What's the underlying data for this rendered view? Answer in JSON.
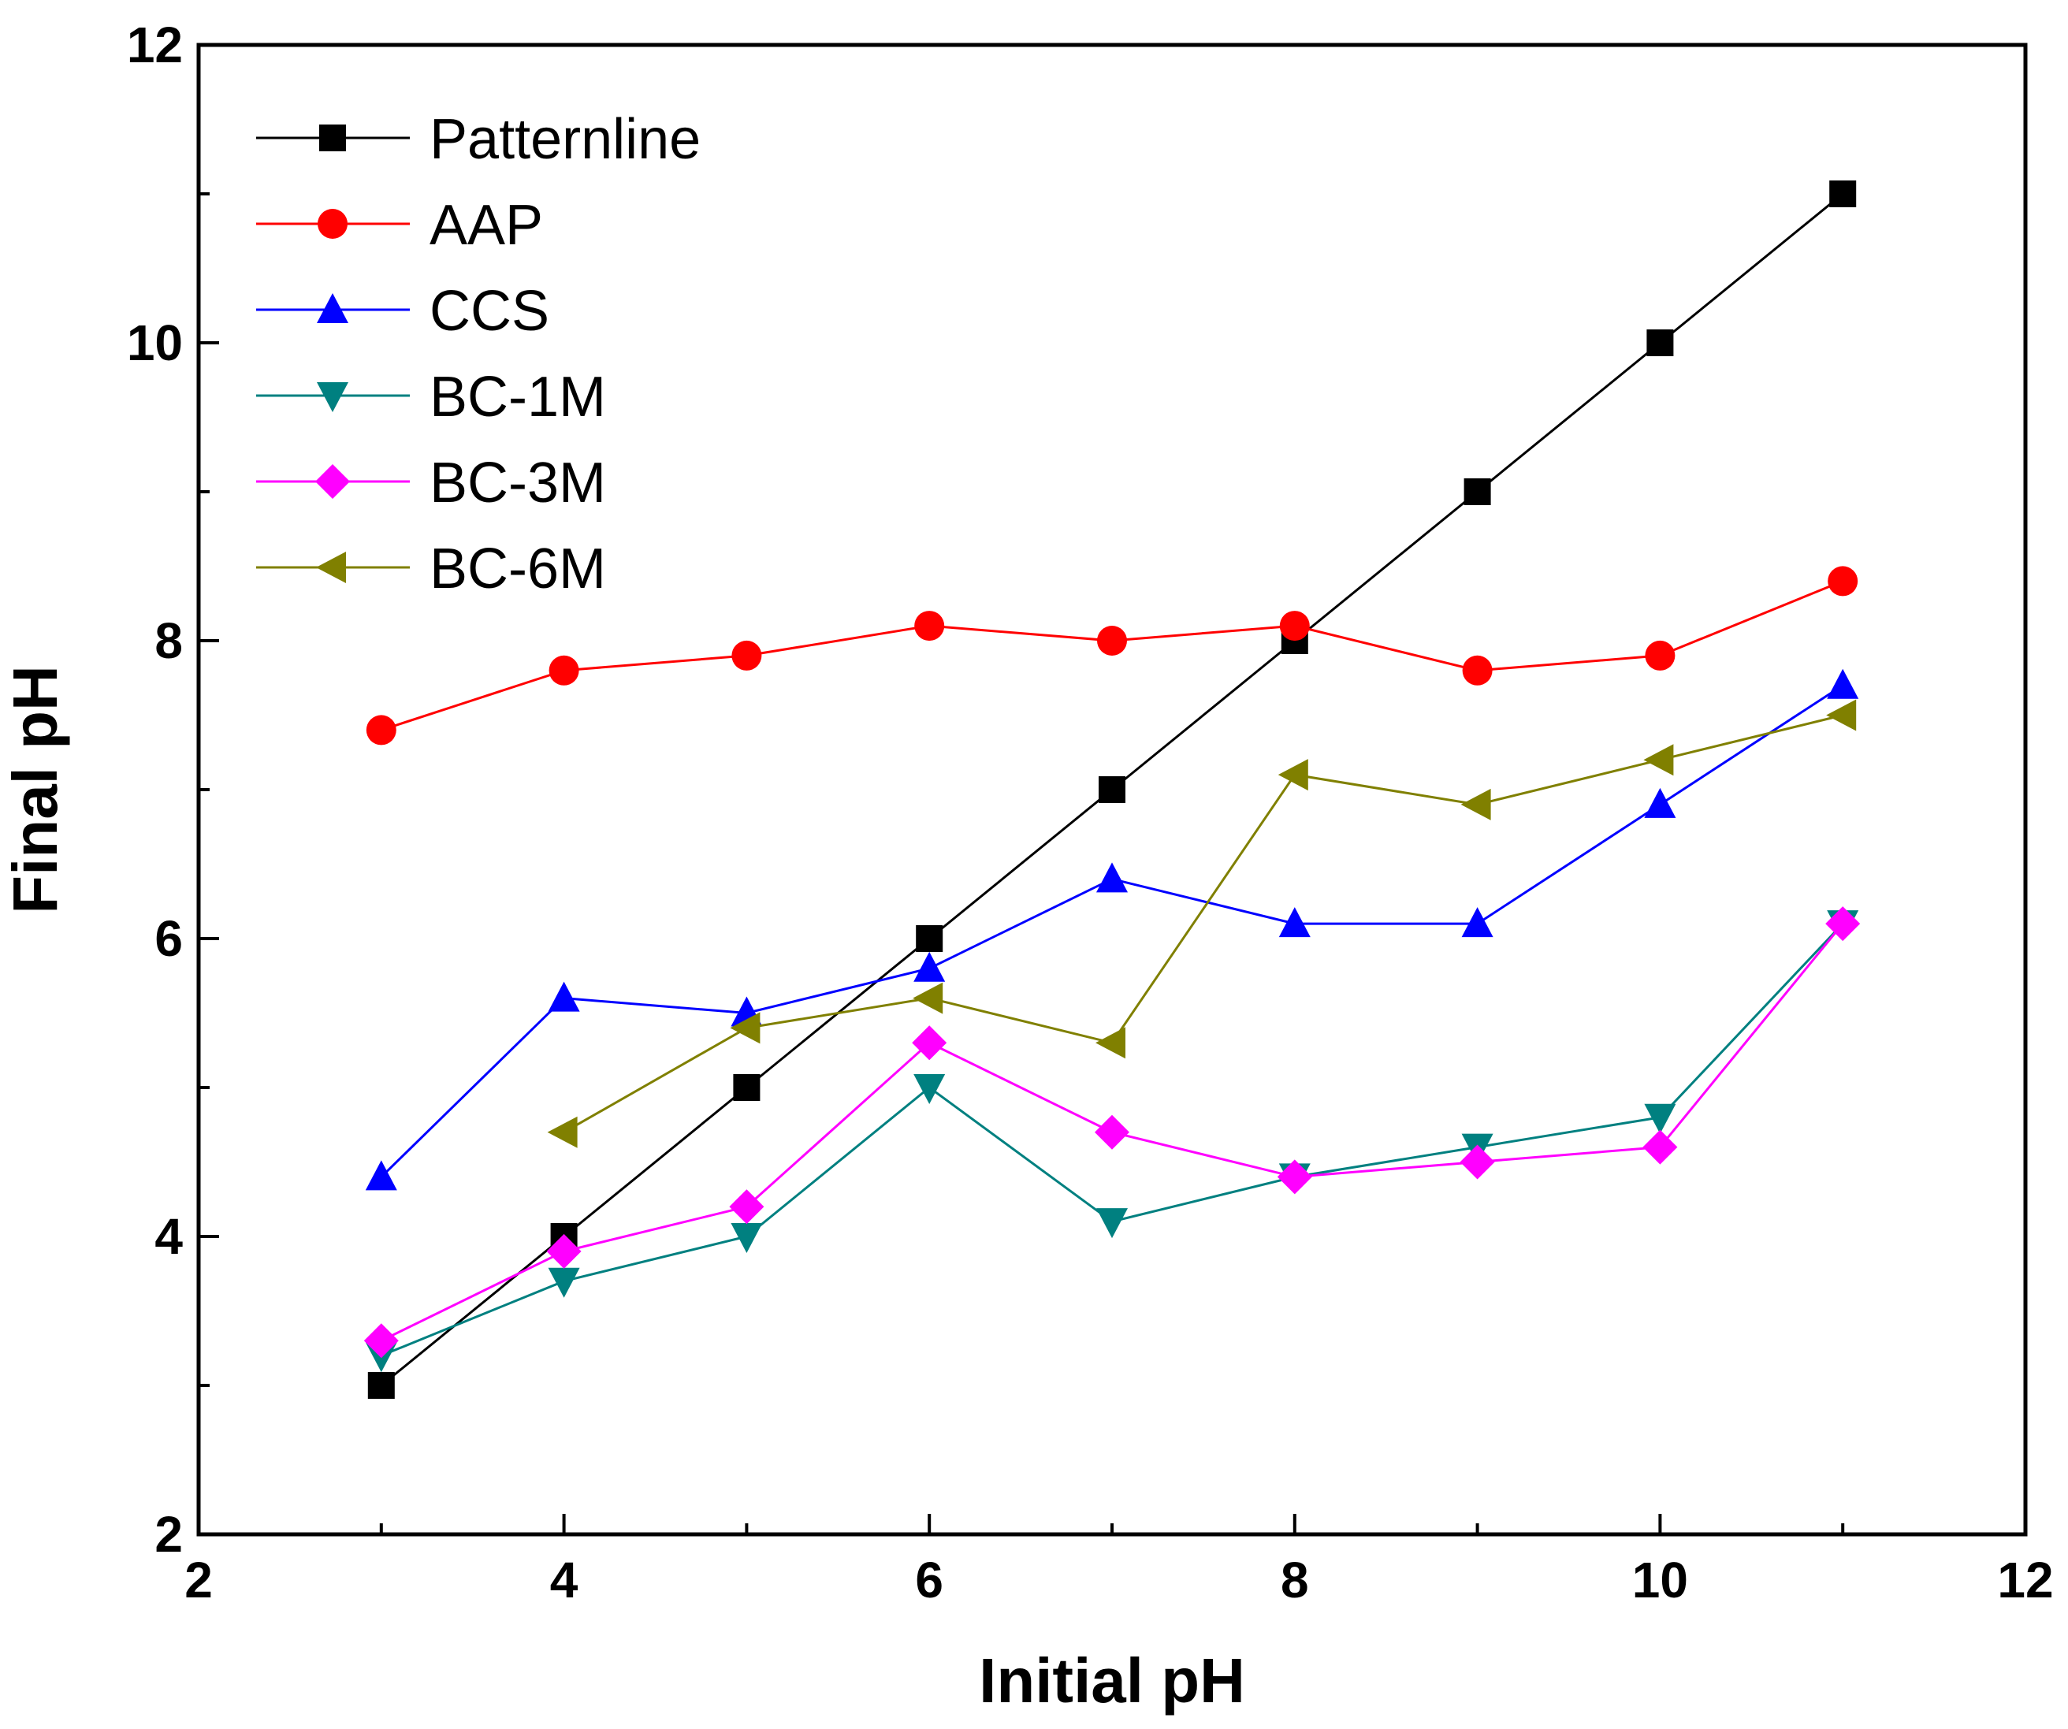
{
  "chart_data": {
    "type": "line",
    "title": "",
    "xlabel": "Initial pH",
    "ylabel": "Final pH",
    "xlim": [
      2,
      12
    ],
    "ylim": [
      2,
      12
    ],
    "xticks": [
      2,
      4,
      6,
      8,
      10,
      12
    ],
    "yticks": [
      2,
      4,
      6,
      8,
      10,
      12
    ],
    "grid": false,
    "legend_position": "top-left",
    "x": [
      3,
      4,
      5,
      6,
      7,
      8,
      9,
      10,
      11
    ],
    "series": [
      {
        "name": "Patternline",
        "color": "#000000",
        "marker": "square",
        "x": [
          3,
          4,
          5,
          6,
          7,
          8,
          9,
          10,
          11
        ],
        "values": [
          3,
          4,
          5,
          6,
          7,
          8,
          9,
          10,
          11
        ]
      },
      {
        "name": "AAP",
        "color": "#ff0000",
        "marker": "circle",
        "x": [
          3,
          4,
          5,
          6,
          7,
          8,
          9,
          10,
          11
        ],
        "values": [
          7.4,
          7.8,
          7.9,
          8.1,
          8.0,
          8.1,
          7.8,
          7.9,
          8.4
        ]
      },
      {
        "name": "CCS",
        "color": "#0000ff",
        "marker": "triangle-up",
        "x": [
          3,
          4,
          5,
          6,
          7,
          8,
          9,
          10,
          11
        ],
        "values": [
          4.4,
          5.6,
          5.5,
          5.8,
          6.4,
          6.1,
          6.1,
          6.9,
          7.7
        ]
      },
      {
        "name": "BC-1M",
        "color": "#008080",
        "marker": "triangle-down",
        "x": [
          3,
          4,
          5,
          6,
          7,
          8,
          9,
          10,
          11
        ],
        "values": [
          3.2,
          3.7,
          4.0,
          5.0,
          4.1,
          4.4,
          4.6,
          4.8,
          6.1
        ]
      },
      {
        "name": "BC-3M",
        "color": "#ff00ff",
        "marker": "diamond",
        "x": [
          3,
          4,
          5,
          6,
          7,
          8,
          9,
          10,
          11
        ],
        "values": [
          3.3,
          3.9,
          4.2,
          5.3,
          4.7,
          4.4,
          4.5,
          4.6,
          6.1
        ]
      },
      {
        "name": "BC-6M",
        "color": "#808000",
        "marker": "triangle-left",
        "x": [
          4,
          5,
          6,
          7,
          8,
          9,
          10,
          11
        ],
        "values": [
          4.7,
          5.4,
          5.6,
          5.3,
          7.1,
          6.9,
          7.2,
          7.5
        ]
      }
    ]
  }
}
